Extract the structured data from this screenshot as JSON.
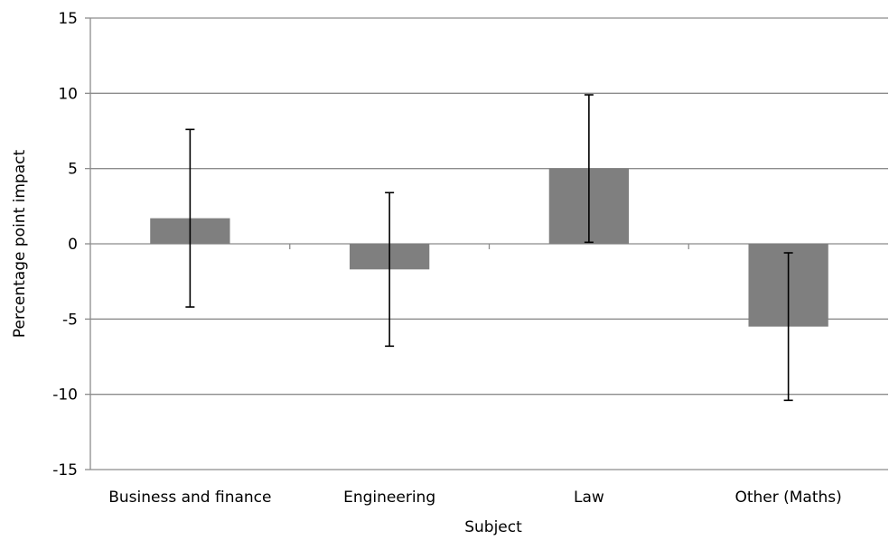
{
  "chart_data": {
    "type": "bar",
    "title": "",
    "xlabel": "Subject",
    "ylabel": "Percentage point impact",
    "categories": [
      "Business and finance",
      "Engineering",
      "Law",
      "Other (Maths)"
    ],
    "series": [
      {
        "values": [
          1.7,
          -1.7,
          5.0,
          -5.5
        ],
        "error_low": [
          -4.2,
          -6.8,
          0.1,
          -10.4
        ],
        "error_high": [
          7.6,
          3.4,
          9.9,
          -0.6
        ]
      }
    ],
    "ylim": [
      -15,
      15
    ],
    "yticks": [
      -15,
      -10,
      -5,
      0,
      5,
      10,
      15
    ],
    "ytick_labels": [
      "-15",
      "-10",
      "-5",
      "0",
      "5",
      "10",
      "15"
    ],
    "grid": true,
    "legend": "none",
    "colors": {
      "bar": "#7f7f7f",
      "grid": "#8c8c8c",
      "error_bar": "#000000"
    }
  }
}
